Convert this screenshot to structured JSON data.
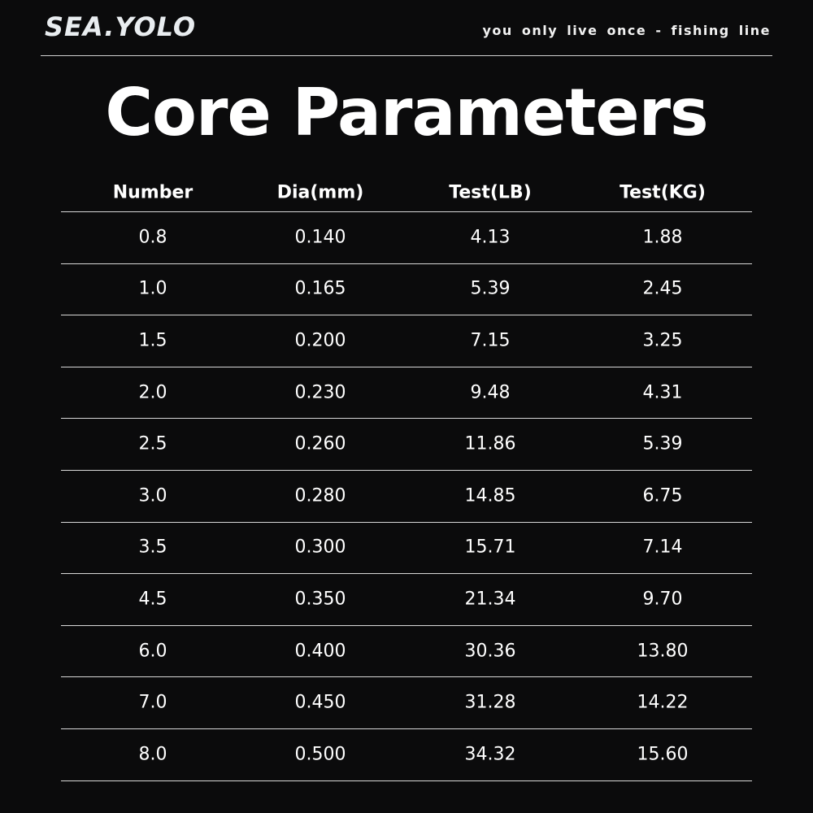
{
  "header": {
    "brand": "SEA.YOLO",
    "tagline": "you only live once - fishing line"
  },
  "title": "Core Parameters",
  "table": {
    "columns": [
      "Number",
      "Dia(mm)",
      "Test(LB)",
      "Test(KG)"
    ],
    "rows": [
      [
        "0.8",
        "0.140",
        "4.13",
        "1.88"
      ],
      [
        "1.0",
        "0.165",
        "5.39",
        "2.45"
      ],
      [
        "1.5",
        "0.200",
        "7.15",
        "3.25"
      ],
      [
        "2.0",
        "0.230",
        "9.48",
        "4.31"
      ],
      [
        "2.5",
        "0.260",
        "11.86",
        "5.39"
      ],
      [
        "3.0",
        "0.280",
        "14.85",
        "6.75"
      ],
      [
        "3.5",
        "0.300",
        "15.71",
        "7.14"
      ],
      [
        "4.5",
        "0.350",
        "21.34",
        "9.70"
      ],
      [
        "6.0",
        "0.400",
        "30.36",
        "13.80"
      ],
      [
        "7.0",
        "0.450",
        "31.28",
        "14.22"
      ],
      [
        "8.0",
        "0.500",
        "34.32",
        "15.60"
      ]
    ]
  }
}
